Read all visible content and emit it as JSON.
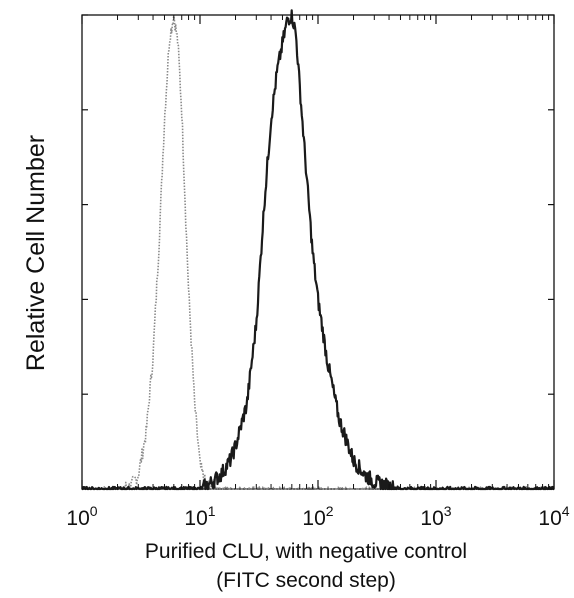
{
  "chart_data": {
    "type": "line",
    "title": "",
    "xlabel_line1": "Purified CLU, with negative control",
    "xlabel_line2": "(FITC second step)",
    "ylabel": "Relative Cell Number",
    "x_scale": "log",
    "xlim": [
      1,
      10000
    ],
    "ylim": [
      0,
      100
    ],
    "grid": false,
    "legend": "none",
    "x_ticks": [
      {
        "value": 1,
        "base": "10",
        "exp": "0"
      },
      {
        "value": 10,
        "base": "10",
        "exp": "1"
      },
      {
        "value": 100,
        "base": "10",
        "exp": "2"
      },
      {
        "value": 1000,
        "base": "10",
        "exp": "3"
      },
      {
        "value": 10000,
        "base": "10",
        "exp": "4"
      }
    ],
    "y_ticks": [
      0,
      20,
      40,
      60,
      80,
      100
    ],
    "series": [
      {
        "style": "dotted",
        "color": "#8a8a8a",
        "x": [
          1,
          2,
          2.6,
          3,
          3.5,
          4,
          4.5,
          5,
          5.5,
          6,
          6.5,
          7,
          7.5,
          8,
          9,
          10,
          11,
          12,
          15,
          20,
          50,
          100,
          1000,
          10000
        ],
        "y": [
          0,
          0,
          0.5,
          3,
          12,
          28,
          52,
          78,
          95,
          100,
          94,
          80,
          60,
          42,
          18,
          5,
          1.5,
          0.5,
          0,
          0,
          0,
          0,
          0,
          0
        ]
      },
      {
        "style": "solid",
        "color": "#1a1a1a",
        "x": [
          1,
          10,
          12,
          15,
          18,
          20,
          25,
          30,
          35,
          40,
          45,
          50,
          55,
          60,
          65,
          70,
          80,
          90,
          100,
          120,
          150,
          200,
          250,
          300,
          400,
          500,
          1000,
          10000
        ],
        "y": [
          0,
          0,
          1,
          3,
          6,
          9,
          18,
          35,
          60,
          78,
          88,
          94,
          99,
          100,
          96,
          85,
          66,
          50,
          40,
          27,
          15,
          6,
          3,
          1.5,
          0.5,
          0,
          0,
          0
        ]
      }
    ]
  }
}
